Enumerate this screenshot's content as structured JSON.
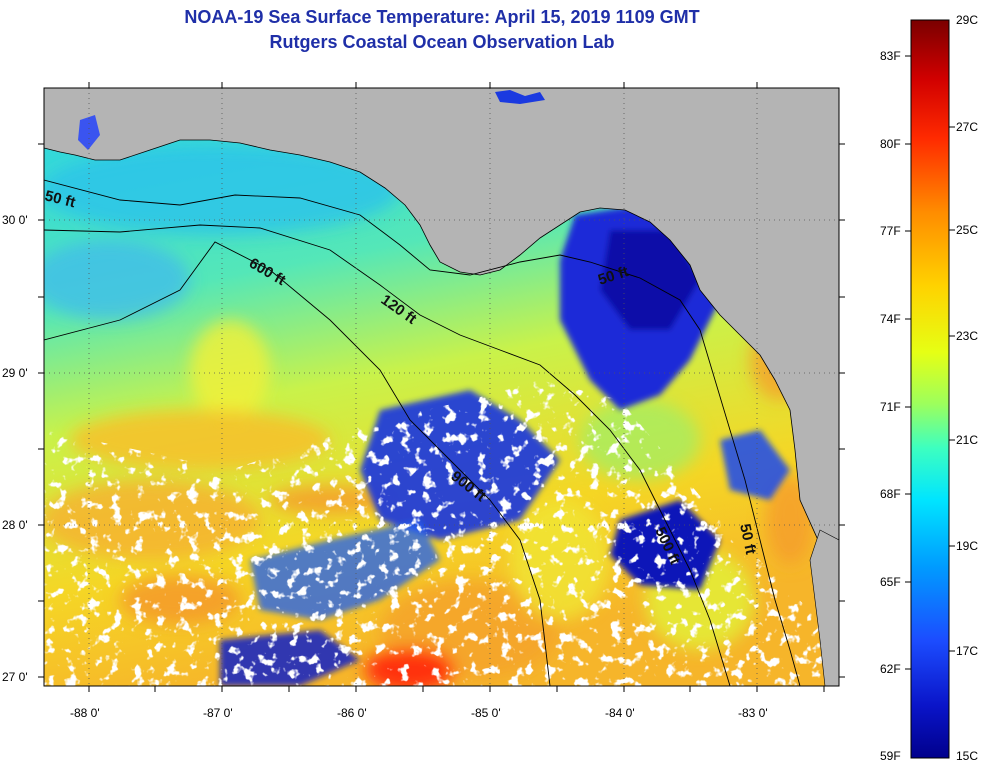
{
  "title_line1": "NOAA-19 Sea Surface Temperature:  April 15, 2019 1109 GMT",
  "title_line2": "Rutgers Coastal Ocean Observation Lab",
  "colors": {
    "land": "#b4b4b4",
    "cloud": "#ffffff",
    "frame": "#000000",
    "gridline": "#555555"
  },
  "lat_labels": [
    "30 0'",
    "29 0'",
    "28 0'",
    "27 0'"
  ],
  "lon_labels": [
    "-88 0'",
    "-87 0'",
    "-86 0'",
    "-85 0'",
    "-84 0'",
    "-83 0'"
  ],
  "contour_labels": [
    "50 ft",
    "600 ft",
    "120 ft",
    "50 ft",
    "900 ft",
    "500 ft",
    "50 ft"
  ],
  "colorbar": {
    "f_labels": [
      "83F",
      "80F",
      "77F",
      "74F",
      "71F",
      "68F",
      "65F",
      "62F",
      "59F"
    ],
    "c_labels": [
      "29C",
      "27C",
      "25C",
      "23C",
      "21C",
      "19C",
      "17C",
      "15C"
    ],
    "c_min": 15,
    "c_max": 29
  }
}
